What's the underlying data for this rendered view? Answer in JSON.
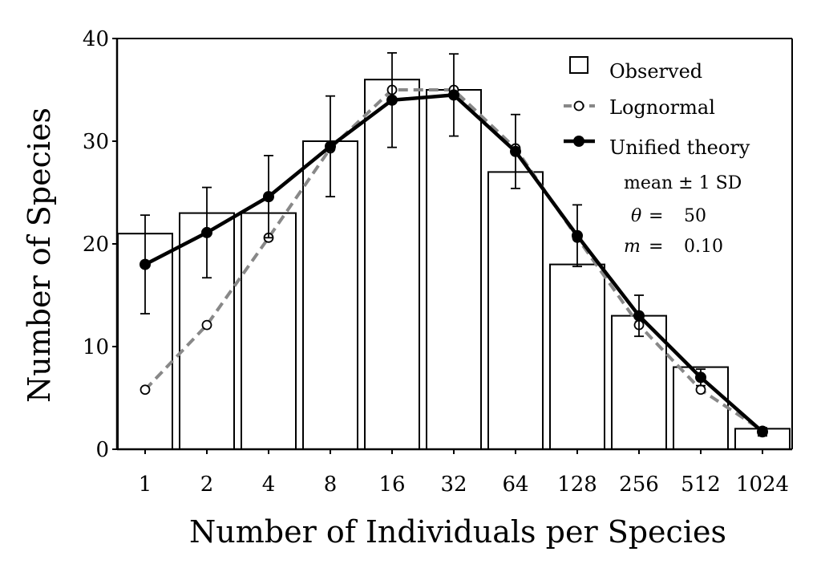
{
  "chart_data": {
    "type": "bar",
    "xlabel": "Number of Individuals per Species",
    "ylabel": "Number of Species",
    "categories": [
      "1",
      "2",
      "4",
      "8",
      "16",
      "32",
      "64",
      "128",
      "256",
      "512",
      "1024"
    ],
    "ylim": [
      0,
      40
    ],
    "yticks": [
      "0",
      "10",
      "20",
      "30",
      "40"
    ],
    "grid": false,
    "legend_position": "top-right",
    "series": [
      {
        "name": "Observed",
        "kind": "bar",
        "values": [
          21,
          23,
          23,
          30,
          36,
          35,
          27,
          18,
          13,
          8,
          2
        ]
      },
      {
        "name": "Lognormal",
        "kind": "line",
        "style": "dashed",
        "marker": "open-circle",
        "color": "#888888",
        "values": [
          5.8,
          12.1,
          20.6,
          29.3,
          35.0,
          35.0,
          29.3,
          20.6,
          12.1,
          5.8,
          1.8
        ]
      },
      {
        "name": "Unified theory",
        "kind": "line",
        "style": "solid",
        "marker": "filled-circle",
        "color": "#000000",
        "values": [
          18.0,
          21.1,
          24.6,
          29.5,
          34.0,
          34.5,
          29.0,
          20.8,
          13.0,
          7.0,
          1.7
        ],
        "error_sd": [
          4.8,
          4.4,
          4.0,
          4.9,
          4.6,
          4.0,
          3.6,
          3.0,
          2.0,
          0.8,
          0.4
        ]
      }
    ],
    "annotations": {
      "stat_label": "mean ± 1 SD",
      "theta_symbol": "θ",
      "theta_eq": "=",
      "theta_value": "50",
      "m_symbol": "m",
      "m_eq": "=",
      "m_value": "0.10"
    }
  }
}
